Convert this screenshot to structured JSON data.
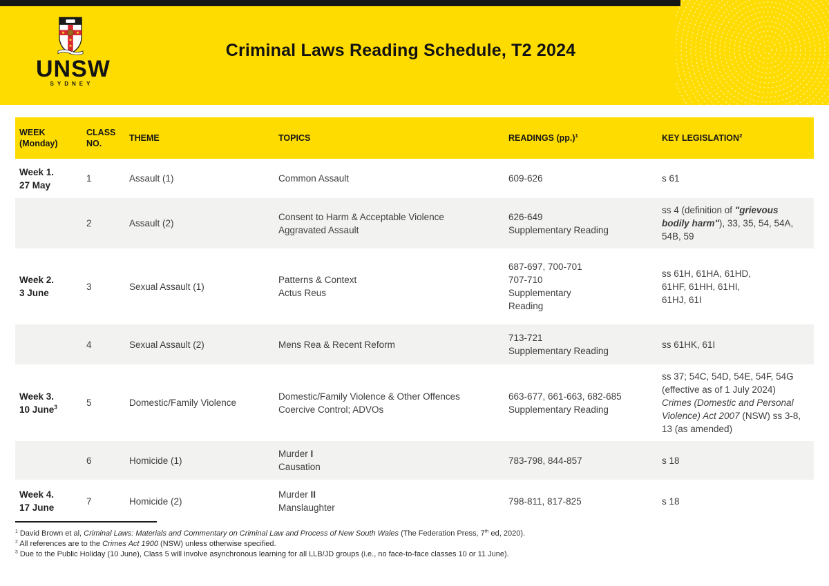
{
  "header": {
    "title": "Criminal Laws Reading Schedule, T2 2024",
    "logo_text": "UNSW",
    "logo_subtext": "SYDNEY"
  },
  "colors": {
    "brand_yellow": "#FFDC00",
    "row_shade": "#F2F2F0",
    "crest_red": "#D7282F",
    "text": "#3D3D3C"
  },
  "icons": {
    "crest": "unsw-crest-icon",
    "fingerprint": "fingerprint-decoration"
  },
  "table": {
    "columns": [
      {
        "id": "week",
        "lines": [
          [
            {
              "t": "WEEK"
            }
          ],
          [
            {
              "t": "(Monday)"
            }
          ]
        ]
      },
      {
        "id": "class_no",
        "lines": [
          [
            {
              "t": "CLASS"
            }
          ],
          [
            {
              "t": "NO."
            }
          ]
        ]
      },
      {
        "id": "theme",
        "lines": [
          [
            {
              "t": "THEME"
            }
          ]
        ]
      },
      {
        "id": "topics",
        "lines": [
          [
            {
              "t": "TOPICS"
            }
          ]
        ]
      },
      {
        "id": "readings",
        "lines": [
          [
            {
              "t": "READINGS (pp.)"
            },
            {
              "t": "1",
              "sup": true
            }
          ]
        ]
      },
      {
        "id": "legislation",
        "lines": [
          [
            {
              "t": "KEY LEGISLATION"
            },
            {
              "t": "2",
              "sup": true
            }
          ]
        ]
      }
    ],
    "rows": [
      {
        "shade": false,
        "week": [
          [
            {
              "t": "Week 1."
            }
          ],
          [
            {
              "t": "27 May"
            }
          ]
        ],
        "class_no": "1",
        "theme": [
          [
            {
              "t": "Assault (1)"
            }
          ]
        ],
        "topics": [
          [
            {
              "t": "Common Assault"
            }
          ]
        ],
        "readings": [
          [
            {
              "t": "609-626"
            }
          ]
        ],
        "legislation": [
          [
            {
              "t": "s 61"
            }
          ]
        ]
      },
      {
        "shade": true,
        "week": [],
        "class_no": "2",
        "theme": [
          [
            {
              "t": "Assault (2)"
            }
          ]
        ],
        "topics": [
          [
            {
              "t": "Consent to Harm & Acceptable Violence"
            }
          ],
          [
            {
              "t": "Aggravated Assault"
            }
          ]
        ],
        "readings": [
          [
            {
              "t": "626-649"
            }
          ],
          [
            {
              "t": "Supplementary Reading"
            }
          ]
        ],
        "legislation": [
          [
            {
              "t": "ss 4 (definition of "
            },
            {
              "t": "\"grievous",
              "b": true,
              "i": true
            }
          ],
          [
            {
              "t": "bodily harm\"",
              "b": true,
              "i": true
            },
            {
              "t": "), 33, 35, 54, 54A,"
            }
          ],
          [
            {
              "t": "54B, 59"
            }
          ]
        ]
      },
      {
        "shade": false,
        "week": [
          [
            {
              "t": "Week 2."
            }
          ],
          [
            {
              "t": "3 June"
            }
          ]
        ],
        "class_no": "3",
        "theme": [
          [
            {
              "t": "Sexual Assault (1)"
            }
          ]
        ],
        "topics": [
          [
            {
              "t": "Patterns & Context"
            }
          ],
          [
            {
              "t": "Actus Reus"
            }
          ]
        ],
        "readings": [
          [
            {
              "t": "687-697, 700-701"
            }
          ],
          [
            {
              "t": "707-710"
            }
          ],
          [
            {
              "t": "Supplementary"
            }
          ],
          [
            {
              "t": "Reading"
            }
          ]
        ],
        "legislation": [
          [
            {
              "t": "ss 61H, 61HA, 61HD,"
            }
          ],
          [
            {
              "t": "61HF, 61HH, 61HI,"
            }
          ],
          [
            {
              "t": "61HJ, 61I"
            }
          ]
        ]
      },
      {
        "shade": true,
        "week": [],
        "class_no": "4",
        "theme": [
          [
            {
              "t": "Sexual Assault (2)"
            }
          ]
        ],
        "topics": [
          [
            {
              "t": "Mens Rea & Recent Reform"
            }
          ]
        ],
        "readings": [
          [
            {
              "t": "713-721"
            }
          ],
          [
            {
              "t": "Supplementary Reading"
            }
          ]
        ],
        "legislation": [
          [
            {
              "t": "ss 61HK, 61I"
            }
          ]
        ]
      },
      {
        "shade": false,
        "week": [
          [
            {
              "t": "Week 3."
            }
          ],
          [
            {
              "t": "10 June"
            },
            {
              "t": "3",
              "sup": true
            }
          ]
        ],
        "class_no": "5",
        "theme": [
          [
            {
              "t": "Domestic/Family Violence"
            }
          ]
        ],
        "topics": [
          [
            {
              "t": "Domestic/Family Violence & Other Offences"
            }
          ],
          [
            {
              "t": "Coercive Control; ADVOs"
            }
          ]
        ],
        "readings": [
          [
            {
              "t": "663-677, 661-663, 682-685"
            }
          ],
          [
            {
              "t": "Supplementary Reading"
            }
          ]
        ],
        "legislation": [
          [
            {
              "t": "ss 37; 54C, 54D, 54E, 54F, 54G"
            }
          ],
          [
            {
              "t": "(effective as of 1 July 2024)"
            }
          ],
          [
            {
              "t": "Crimes (Domestic and Personal",
              "i": true
            }
          ],
          [
            {
              "t": "Violence) Act 2007",
              "i": true
            },
            {
              "t": " (NSW) ss 3-8,"
            }
          ],
          [
            {
              "t": "13 (as amended)"
            }
          ]
        ]
      },
      {
        "shade": true,
        "week": [],
        "class_no": "6",
        "theme": [
          [
            {
              "t": "Homicide (1)"
            }
          ]
        ],
        "topics": [
          [
            {
              "t": "Murder "
            },
            {
              "t": "I",
              "b": true
            }
          ],
          [
            {
              "t": "Causation"
            }
          ]
        ],
        "readings": [
          [
            {
              "t": "783-798, 844-857"
            }
          ]
        ],
        "legislation": [
          [
            {
              "t": "s 18"
            }
          ]
        ]
      },
      {
        "shade": false,
        "week": [
          [
            {
              "t": "Week 4."
            }
          ],
          [
            {
              "t": "17 June"
            }
          ]
        ],
        "class_no": "7",
        "theme": [
          [
            {
              "t": "Homicide (2)"
            }
          ]
        ],
        "topics": [
          [
            {
              "t": "Murder "
            },
            {
              "t": "II",
              "b": true
            }
          ],
          [
            {
              "t": "Manslaughter"
            }
          ]
        ],
        "readings": [
          [
            {
              "t": "798-811, 817-825"
            }
          ]
        ],
        "legislation": [
          [
            {
              "t": "s 18"
            }
          ]
        ]
      }
    ]
  },
  "footnotes": [
    [
      {
        "t": "1",
        "sup": true
      },
      {
        "t": " David Brown et al, "
      },
      {
        "t": "Criminal Laws: Materials and Commentary on Criminal Law and Process of New South Wales",
        "i": true
      },
      {
        "t": " (The Federation Press, 7"
      },
      {
        "t": "th",
        "sup": true
      },
      {
        "t": " ed, 2020)."
      }
    ],
    [
      {
        "t": "2",
        "sup": true
      },
      {
        "t": " All references are to the "
      },
      {
        "t": "Crimes Act 1900",
        "i": true
      },
      {
        "t": " (NSW) unless otherwise specified."
      }
    ],
    [
      {
        "t": "3",
        "sup": true
      },
      {
        "t": " Due to the Public Holiday (10 June), Class 5 will involve asynchronous learning for all LLB/JD groups (i.e., no face-to-face classes 10 or 11 June)."
      }
    ]
  ]
}
